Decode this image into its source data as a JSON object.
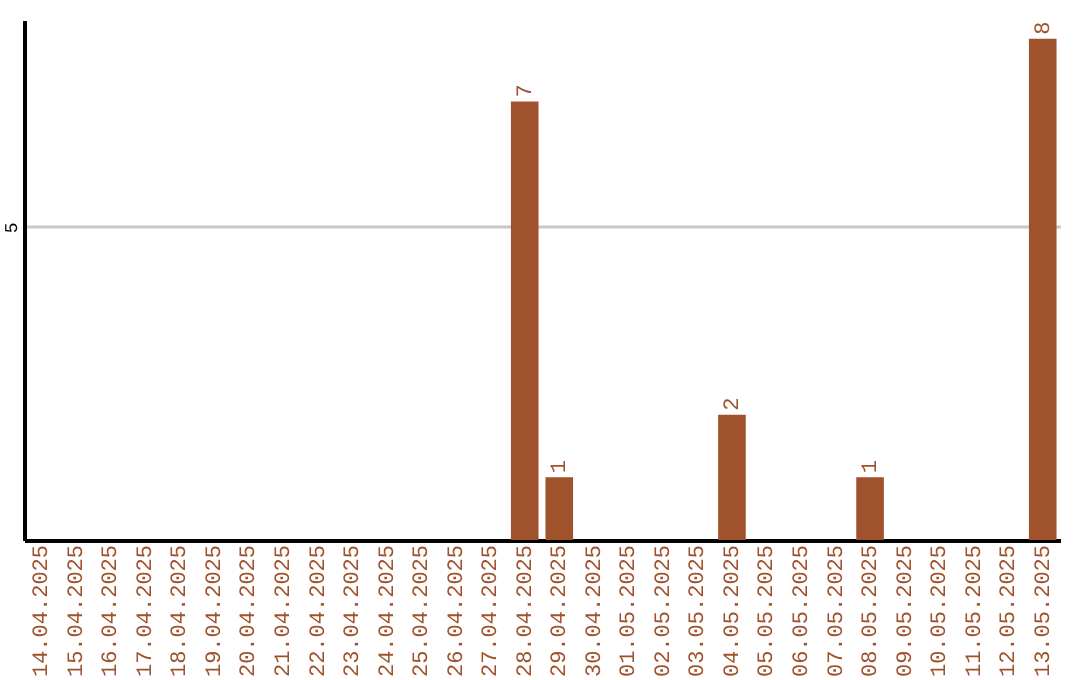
{
  "chart_data": {
    "type": "bar",
    "categories": [
      "14.04.2025",
      "15.04.2025",
      "16.04.2025",
      "17.04.2025",
      "18.04.2025",
      "19.04.2025",
      "20.04.2025",
      "21.04.2025",
      "22.04.2025",
      "23.04.2025",
      "24.04.2025",
      "25.04.2025",
      "26.04.2025",
      "27.04.2025",
      "28.04.2025",
      "29.04.2025",
      "30.04.2025",
      "01.05.2025",
      "02.05.2025",
      "03.05.2025",
      "04.05.2025",
      "05.05.2025",
      "06.05.2025",
      "07.05.2025",
      "08.05.2025",
      "09.05.2025",
      "10.05.2025",
      "11.05.2025",
      "12.05.2025",
      "13.05.2025"
    ],
    "values": [
      null,
      null,
      null,
      null,
      null,
      null,
      null,
      null,
      null,
      null,
      null,
      null,
      null,
      null,
      7,
      1,
      null,
      null,
      null,
      null,
      2,
      null,
      null,
      null,
      1,
      null,
      null,
      null,
      null,
      8
    ],
    "data_labels": true,
    "color": "#a0522d",
    "ylim": [
      0,
      8.3
    ],
    "yticks": [
      5
    ],
    "grid": "y"
  }
}
